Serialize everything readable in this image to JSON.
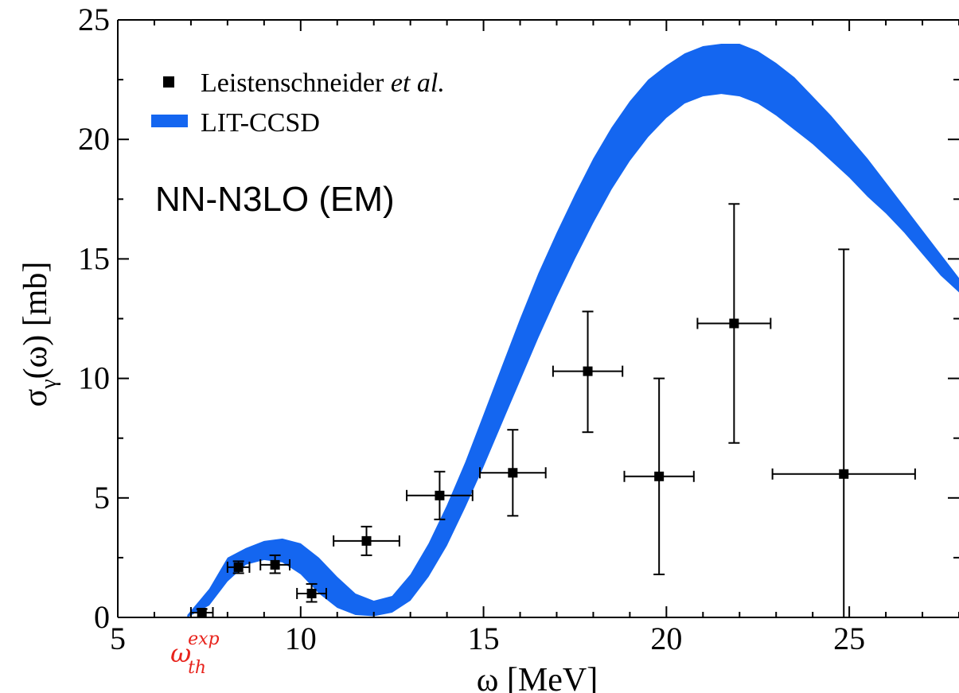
{
  "chart_data": {
    "type": "scatter",
    "xlabel": "ω [MeV]",
    "ylabel_main": "σ",
    "ylabel_sub": "γ",
    "ylabel_rest": "(ω) [mb]",
    "xlim": [
      5,
      28
    ],
    "ylim": [
      0,
      25
    ],
    "xticks": [
      5,
      10,
      15,
      20,
      25
    ],
    "yticks": [
      0,
      5,
      10,
      15,
      20,
      25
    ],
    "xtick_labels": [
      "5",
      "10",
      "15",
      "20",
      "25"
    ],
    "ytick_labels": [
      "0",
      "5",
      "10",
      "15",
      "20",
      "25"
    ],
    "legend": {
      "placement": "top-left",
      "entries": [
        {
          "label_main": "Leistenschneider ",
          "label_italic": "et al.",
          "marker": "square",
          "color": "#000000"
        },
        {
          "label_main": "LIT-CCSD",
          "marker": "band",
          "color": "#1466f0"
        }
      ]
    },
    "annotation": "NN-N3LO (EM)",
    "threshold_label": {
      "base": "ω",
      "sup": "exp",
      "sub": "th",
      "x": 7.2,
      "color": "#e8231c"
    },
    "band": {
      "name": "LIT-CCSD",
      "color": "#1466f0",
      "x": [
        6.9,
        7.5,
        8.0,
        8.5,
        9.0,
        9.5,
        10.0,
        10.5,
        11.0,
        11.5,
        12.0,
        12.5,
        13.0,
        13.5,
        14.0,
        14.5,
        15.0,
        15.5,
        16.0,
        16.5,
        17.0,
        17.5,
        18.0,
        18.5,
        19.0,
        19.5,
        20.0,
        20.5,
        21.0,
        21.5,
        22.0,
        22.5,
        23.0,
        23.5,
        24.0,
        24.5,
        25.0,
        25.5,
        26.0,
        26.5,
        27.0,
        27.5,
        28.0
      ],
      "lower": [
        0.0,
        0.5,
        1.5,
        2.2,
        2.4,
        2.3,
        1.8,
        1.0,
        0.4,
        0.1,
        0.05,
        0.2,
        0.7,
        1.7,
        3.0,
        4.6,
        6.3,
        8.1,
        9.9,
        11.7,
        13.4,
        15.0,
        16.5,
        17.9,
        19.1,
        20.1,
        20.9,
        21.5,
        21.8,
        21.9,
        21.8,
        21.5,
        21.0,
        20.4,
        19.8,
        19.1,
        18.4,
        17.6,
        16.9,
        16.1,
        15.2,
        14.3,
        13.6
      ],
      "upper": [
        0.1,
        1.2,
        2.5,
        2.9,
        3.2,
        3.3,
        3.1,
        2.5,
        1.7,
        1.0,
        0.7,
        0.9,
        1.8,
        3.1,
        4.7,
        6.5,
        8.5,
        10.5,
        12.5,
        14.4,
        16.1,
        17.7,
        19.2,
        20.5,
        21.6,
        22.5,
        23.1,
        23.6,
        23.9,
        24.0,
        24.0,
        23.7,
        23.2,
        22.6,
        21.8,
        21.0,
        20.1,
        19.2,
        18.2,
        17.2,
        16.2,
        15.2,
        14.2
      ]
    },
    "series": [
      {
        "name": "Leistenschneider et al.",
        "marker": "square",
        "color": "#000000",
        "points": [
          {
            "x": 7.3,
            "y": 0.2,
            "xerr": 0.3,
            "ylo": 0.0,
            "yhi": 0.35
          },
          {
            "x": 8.3,
            "y": 2.1,
            "xerr": 0.3,
            "ylo": 1.85,
            "yhi": 2.35
          },
          {
            "x": 9.3,
            "y": 2.2,
            "xerr": 0.4,
            "ylo": 1.85,
            "yhi": 2.6
          },
          {
            "x": 10.3,
            "y": 1.0,
            "xerr": 0.4,
            "ylo": 0.65,
            "yhi": 1.4
          },
          {
            "x": 11.8,
            "y": 3.2,
            "xerr": 0.9,
            "ylo": 2.6,
            "yhi": 3.8
          },
          {
            "x": 13.8,
            "y": 5.1,
            "xerr": 0.9,
            "ylo": 4.1,
            "yhi": 6.1
          },
          {
            "x": 15.8,
            "y": 6.05,
            "xerr": 0.9,
            "ylo": 4.25,
            "yhi": 7.85
          },
          {
            "x": 17.85,
            "y": 10.3,
            "xerr": 0.95,
            "ylo": 7.75,
            "yhi": 12.8
          },
          {
            "x": 19.8,
            "y": 5.9,
            "xerr": 0.95,
            "ylo": 1.8,
            "yhi": 10.0
          },
          {
            "x": 21.85,
            "y": 12.3,
            "xerr": 1.0,
            "ylo": 7.3,
            "yhi": 17.3
          },
          {
            "x": 24.85,
            "y": 6.0,
            "xerr": 1.95,
            "ylo": 0.0,
            "yhi": 15.4
          }
        ]
      }
    ]
  }
}
